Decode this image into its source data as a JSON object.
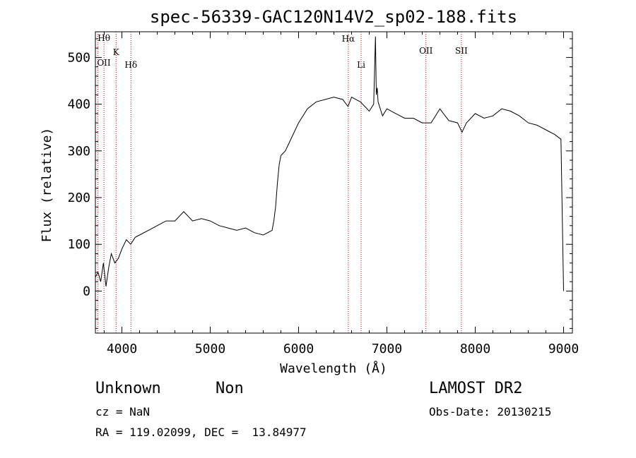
{
  "chart_data": {
    "type": "line",
    "title": "spec-56339-GAC120N14V2_sp02-188.fits",
    "xlabel": "Wavelength (Å)",
    "ylabel": "Flux (relative)",
    "xlim": [
      3700,
      9100
    ],
    "ylim": [
      -90,
      555
    ],
    "xticks": [
      4000,
      5000,
      6000,
      7000,
      8000,
      9000
    ],
    "yticks": [
      0,
      100,
      200,
      300,
      400,
      500
    ],
    "grid": false,
    "series": [
      {
        "x": [
          3700,
          3730,
          3760,
          3790,
          3820,
          3850,
          3880,
          3920,
          3960,
          4000,
          4050,
          4100,
          4150,
          4200,
          4300,
          4400,
          4500,
          4600,
          4700,
          4800,
          4900,
          5000,
          5100,
          5200,
          5300,
          5400,
          5500,
          5600,
          5650,
          5700,
          5720,
          5740,
          5760,
          5780,
          5800,
          5850,
          5900,
          6000,
          6100,
          6200,
          6300,
          6400,
          6500,
          6560,
          6600,
          6700,
          6800,
          6850,
          6870,
          6880,
          6890,
          6900,
          6950,
          7000,
          7100,
          7200,
          7300,
          7400,
          7500,
          7600,
          7700,
          7800,
          7850,
          7900,
          8000,
          8100,
          8200,
          8300,
          8400,
          8500,
          8600,
          8700,
          8800,
          8900,
          8970,
          9000
        ],
        "y": [
          30,
          40,
          20,
          60,
          10,
          50,
          80,
          60,
          70,
          90,
          110,
          100,
          115,
          120,
          130,
          140,
          150,
          150,
          170,
          150,
          155,
          150,
          140,
          135,
          130,
          135,
          125,
          120,
          125,
          130,
          150,
          180,
          230,
          270,
          290,
          300,
          320,
          360,
          390,
          405,
          410,
          415,
          410,
          395,
          415,
          405,
          385,
          400,
          545,
          420,
          435,
          405,
          375,
          390,
          380,
          370,
          370,
          360,
          360,
          390,
          365,
          360,
          340,
          360,
          380,
          370,
          375,
          390,
          385,
          375,
          360,
          355,
          345,
          335,
          325,
          0
        ]
      }
    ],
    "lines": [
      {
        "label": "Hθ",
        "x": 3797
      },
      {
        "label": "OII",
        "x": 3727
      },
      {
        "label": "K",
        "x": 3934
      },
      {
        "label": "Hδ",
        "x": 4102
      },
      {
        "label": "Hα",
        "x": 6563
      },
      {
        "label": "Li",
        "x": 6708
      },
      {
        "label": "OII",
        "x": 7442
      },
      {
        "label": "SII",
        "x": 7843
      }
    ],
    "line_color": "#cc0000"
  },
  "info": {
    "class_label": "Unknown",
    "subclass_label": "Non",
    "cz": "cz = NaN",
    "radec": "RA = 119.02099, DEC =  13.84977",
    "survey": "LAMOST DR2",
    "obs_date": "Obs-Date: 20130215"
  }
}
